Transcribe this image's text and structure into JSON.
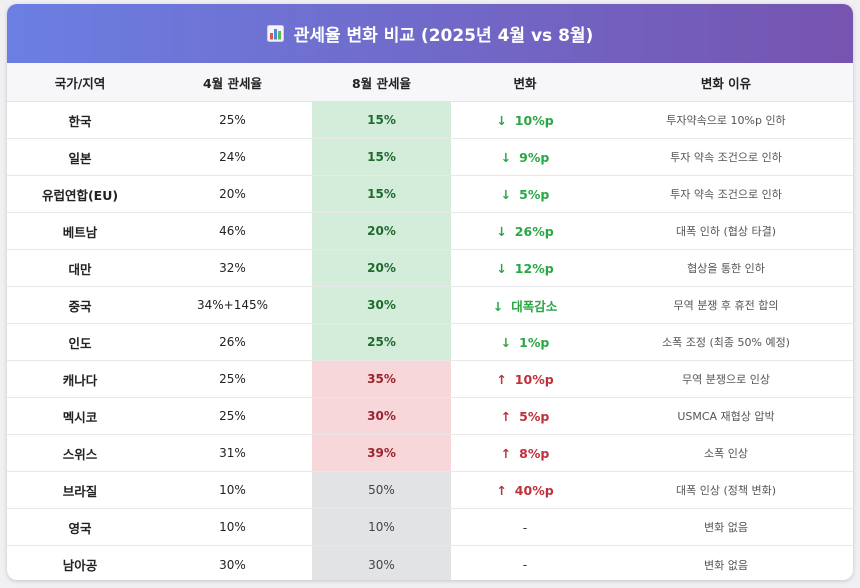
{
  "header": {
    "title": "관세율 변화 비교 (2025년 4월 vs 8월)",
    "icon": "bar-chart-icon"
  },
  "columns": [
    "국가/지역",
    "4월 관세율",
    "8월 관세율",
    "변화",
    "변화 이유"
  ],
  "colors": {
    "header_gradient_start": "#6b7fe2",
    "header_gradient_end": "#7654b0",
    "decrease_bg": "#d4edda",
    "increase_bg": "#f8d7da",
    "neutral_bg": "#e2e3e5",
    "decrease_text": "#28a745",
    "increase_text": "#c0303a"
  },
  "rows": [
    {
      "country": "한국",
      "april": "25%",
      "august": "15%",
      "arrow": "↓",
      "change": "10%p",
      "reason": "투자약속으로 10%p 인하"
    },
    {
      "country": "일본",
      "april": "24%",
      "august": "15%",
      "arrow": "↓",
      "change": "9%p",
      "reason": "투자 약속 조건으로 인하"
    },
    {
      "country": "유럽연합(EU)",
      "april": "20%",
      "august": "15%",
      "arrow": "↓",
      "change": "5%p",
      "reason": "투자 약속 조건으로 인하"
    },
    {
      "country": "베트남",
      "april": "46%",
      "august": "20%",
      "arrow": "↓",
      "change": "26%p",
      "reason": "대폭 인하 (협상 타결)"
    },
    {
      "country": "대만",
      "april": "32%",
      "august": "20%",
      "arrow": "↓",
      "change": "12%p",
      "reason": "협상을 통한 인하"
    },
    {
      "country": "중국",
      "april": "34%+145%",
      "august": "30%",
      "arrow": "↓",
      "change": "대폭감소",
      "reason": "무역 분쟁 후 휴전 합의"
    },
    {
      "country": "인도",
      "april": "26%",
      "august": "25%",
      "arrow": "↓",
      "change": "1%p",
      "reason": "소폭 조정 (최종 50% 예정)"
    },
    {
      "country": "캐나다",
      "april": "25%",
      "august": "35%",
      "arrow": "↑",
      "change": "10%p",
      "reason": "무역 분쟁으로 인상"
    },
    {
      "country": "멕시코",
      "april": "25%",
      "august": "30%",
      "arrow": "↑",
      "change": "5%p",
      "reason": "USMCA 재협상 압박"
    },
    {
      "country": "스위스",
      "april": "31%",
      "august": "39%",
      "arrow": "↑",
      "change": "8%p",
      "reason": "소폭 인상"
    },
    {
      "country": "브라질",
      "april": "10%",
      "august": "50%",
      "arrow": "↑",
      "change": "40%p",
      "reason": "대폭 인상 (정책 변화)"
    },
    {
      "country": "영국",
      "april": "10%",
      "august": "10%",
      "arrow": "",
      "change": "-",
      "reason": "변화 없음"
    },
    {
      "country": "남아공",
      "april": "30%",
      "august": "30%",
      "arrow": "",
      "change": "-",
      "reason": "변화 없음"
    }
  ]
}
